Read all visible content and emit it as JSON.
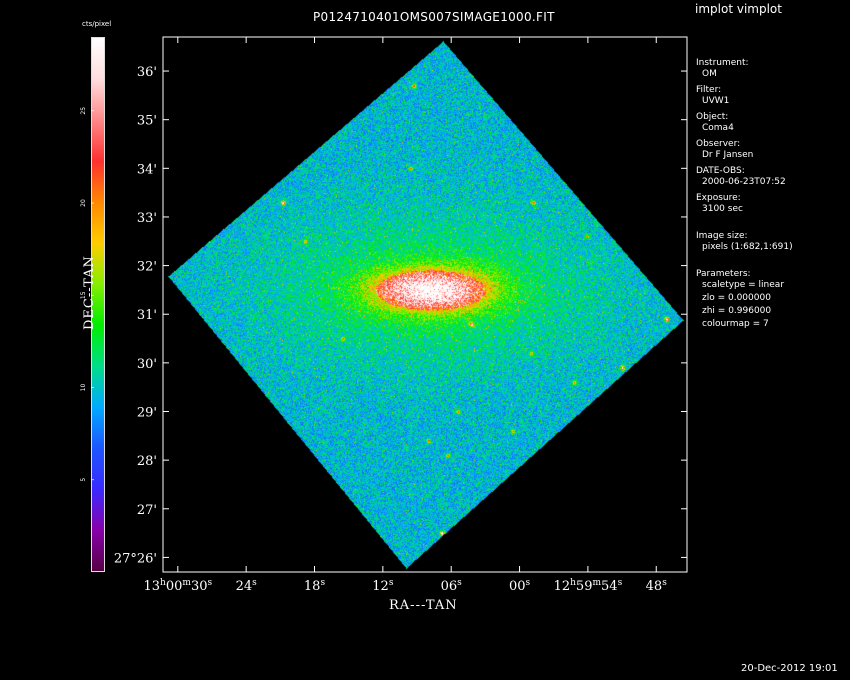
{
  "window": {
    "app_title": "implot vimplot",
    "footer_date": "20-Dec-2012 19:01"
  },
  "image": {
    "file_title": "P0124710401OMS007SIMAGE1000.FIT"
  },
  "info": {
    "instrument": {
      "label": "Instrument:",
      "value": "OM"
    },
    "filter": {
      "label": "Filter:",
      "value": "UVW1"
    },
    "object": {
      "label": "Object:",
      "value": "Coma4"
    },
    "observer": {
      "label": "Observer:",
      "value": "Dr F Jansen"
    },
    "date_obs": {
      "label": "DATE-OBS:",
      "value": "2000-06-23T07:52"
    },
    "exposure": {
      "label": "Exposure:",
      "value": "3100 sec"
    },
    "image_size": {
      "label": "Image size:",
      "value": "pixels (1:682,1:691)"
    },
    "parameters": {
      "label": "Parameters:",
      "scaletype": "scaletype = linear",
      "zlo": "zlo = 0.000000",
      "zhi": "zhi = 0.996000",
      "colourmap": "colourmap =   7"
    }
  },
  "chart_data": {
    "type": "heatmap",
    "title": "P0124710401OMS007SIMAGE1000.FIT",
    "xlabel": "RA---TAN",
    "ylabel": "DEC--TAN",
    "x_ticks": [
      {
        "value": 30,
        "prefix": "13",
        "sup1": "h",
        "mid": "00",
        "sup2": "m",
        "sec": "30",
        "sup3": "s"
      },
      {
        "value": 24,
        "prefix": "",
        "sup1": "",
        "mid": "",
        "sup2": "",
        "sec": "24",
        "sup3": "s"
      },
      {
        "value": 18,
        "prefix": "",
        "sup1": "",
        "mid": "",
        "sup2": "",
        "sec": "18",
        "sup3": "s"
      },
      {
        "value": 12,
        "prefix": "",
        "sup1": "",
        "mid": "",
        "sup2": "",
        "sec": "12",
        "sup3": "s"
      },
      {
        "value": 6,
        "prefix": "",
        "sup1": "",
        "mid": "",
        "sup2": "",
        "sec": "06",
        "sup3": "s"
      },
      {
        "value": 0,
        "prefix": "",
        "sup1": "",
        "mid": "",
        "sup2": "",
        "sec": "00",
        "sup3": "s"
      },
      {
        "value": -6,
        "prefix": "12",
        "sup1": "h",
        "mid": "59",
        "sup2": "m",
        "sec": "54",
        "sup3": "s"
      },
      {
        "value": -12,
        "prefix": "",
        "sup1": "",
        "mid": "",
        "sup2": "",
        "sec": "48",
        "sup3": "s"
      }
    ],
    "y_ticks": [
      {
        "value": 26,
        "label": "27°26'"
      },
      {
        "value": 27,
        "label": "27'"
      },
      {
        "value": 28,
        "label": "28'"
      },
      {
        "value": 29,
        "label": "29'"
      },
      {
        "value": 30,
        "label": "30'"
      },
      {
        "value": 31,
        "label": "31'"
      },
      {
        "value": 32,
        "label": "32'"
      },
      {
        "value": 33,
        "label": "33'"
      },
      {
        "value": 34,
        "label": "34'"
      },
      {
        "value": 35,
        "label": "35'"
      },
      {
        "value": 36,
        "label": "36'"
      }
    ],
    "xlim": [
      31.3,
      -14.7
    ],
    "ylim": [
      25.7,
      36.7
    ],
    "colorbar": {
      "unit": "cts/pixel",
      "range": [
        0,
        29
      ],
      "ticks": [
        5,
        10,
        15,
        20,
        25
      ],
      "colormap": [
        "#550044",
        "#8800aa",
        "#3a2aff",
        "#1c56ff",
        "#00aaff",
        "#00dd88",
        "#00ee00",
        "#88ee00",
        "#ffcc00",
        "#ff8800",
        "#ff3030",
        "#ff8888",
        "#ffdddd",
        "#ffffff"
      ]
    },
    "grid": false,
    "legend": "right",
    "sources": [
      {
        "name": "extended-galaxy",
        "ra_s": 7.8,
        "dec_m": 31.5,
        "peak": 25
      },
      {
        "name": "star",
        "ra_s": 20.8,
        "dec_m": 33.3,
        "peak": 20
      },
      {
        "name": "star",
        "ra_s": 30.2,
        "dec_m": 30.9,
        "peak": 18
      },
      {
        "name": "star",
        "ra_s": 4.2,
        "dec_m": 30.8,
        "peak": 16
      },
      {
        "name": "star",
        "ra_s": -12.9,
        "dec_m": 30.9,
        "peak": 22
      },
      {
        "name": "star",
        "ra_s": -9.0,
        "dec_m": 29.9,
        "peak": 20
      },
      {
        "name": "star",
        "ra_s": 6.8,
        "dec_m": 26.5,
        "peak": 22
      },
      {
        "name": "star",
        "ra_s": 9.3,
        "dec_m": 35.7,
        "peak": 14
      },
      {
        "name": "star",
        "ra_s": -1.2,
        "dec_m": 33.3,
        "peak": 12
      },
      {
        "name": "star",
        "ra_s": 5.4,
        "dec_m": 29.0,
        "peak": 12
      },
      {
        "name": "star",
        "ra_s": -4.8,
        "dec_m": 29.6,
        "peak": 12
      },
      {
        "name": "star",
        "ra_s": 9.6,
        "dec_m": 34.0,
        "peak": 12
      },
      {
        "name": "star",
        "ra_s": 8.0,
        "dec_m": 28.4,
        "peak": 12
      },
      {
        "name": "star",
        "ra_s": 18.8,
        "dec_m": 32.5,
        "peak": 10
      },
      {
        "name": "star",
        "ra_s": 15.5,
        "dec_m": 30.5,
        "peak": 10
      },
      {
        "name": "star",
        "ra_s": 6.3,
        "dec_m": 28.1,
        "peak": 10
      },
      {
        "name": "star",
        "ra_s": 0.6,
        "dec_m": 28.6,
        "peak": 10
      },
      {
        "name": "star",
        "ra_s": -5.9,
        "dec_m": 32.6,
        "peak": 10
      },
      {
        "name": "star",
        "ra_s": -1.0,
        "dec_m": 30.2,
        "peak": 10
      }
    ]
  }
}
